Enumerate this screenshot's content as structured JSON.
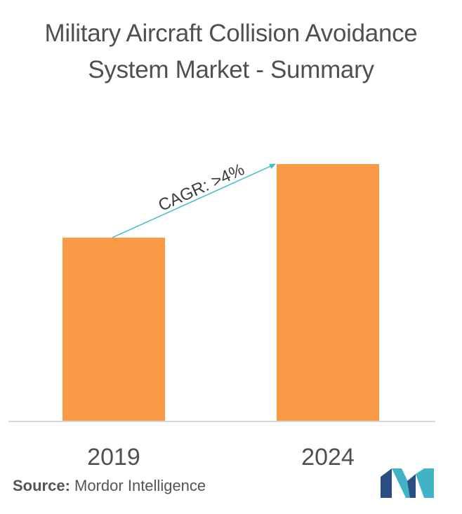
{
  "title": "Military Aircraft Collision Avoidance System Market - Summary",
  "chart_data": {
    "type": "bar",
    "categories": [
      "2019",
      "2024"
    ],
    "values": [
      1.0,
      1.4
    ],
    "ylim": [
      0,
      1.4
    ],
    "grid": false,
    "annotation": {
      "text": "CAGR: >4%",
      "from": "2019",
      "to": "2024"
    },
    "colors": {
      "bar": "#F99B46",
      "arrow": "#48BCC8",
      "baseline": "#D8D8D8",
      "text": "#3C3C3C"
    }
  },
  "source": {
    "label": "Source:",
    "text": "Mordor Intelligence"
  },
  "logo": {
    "icon": "mordor-intelligence-logo",
    "colors": [
      "#2B4E82",
      "#41B3C5"
    ]
  }
}
